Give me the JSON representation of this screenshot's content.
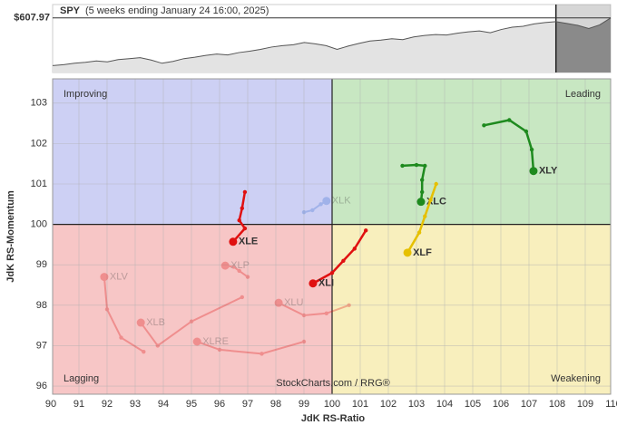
{
  "chart_data": [
    {
      "type": "area",
      "title": "SPY",
      "subtitle": "(5 weeks ending January 24 16:00, 2025)",
      "price": {
        "value": 607.97,
        "label": "$607.97"
      },
      "values": [
        505,
        507,
        510,
        512,
        515,
        513,
        518,
        520,
        522,
        517,
        510,
        514,
        520,
        523,
        527,
        530,
        528,
        533,
        536,
        540,
        545,
        548,
        550,
        555,
        552,
        548,
        540,
        547,
        553,
        558,
        560,
        563,
        561,
        567,
        570,
        572,
        571,
        575,
        578,
        580,
        576,
        583,
        588,
        590,
        595,
        598,
        600,
        596,
        592,
        585,
        593,
        607.97
      ],
      "ylim": [
        490,
        637
      ],
      "shade_last": 5,
      "color": "#e3e3e3",
      "shade_color": "#8a8a8a"
    },
    {
      "type": "rrg",
      "x_label": "JdK RS-Ratio",
      "y_label": "JdK RS-Momentum",
      "watermark": "StockCharts.com / RRG®",
      "xlim": [
        90,
        110
      ],
      "ylim": [
        95.8,
        103.6
      ],
      "xticks": [
        90,
        91,
        92,
        93,
        94,
        95,
        96,
        97,
        98,
        99,
        100,
        101,
        102,
        103,
        104,
        105,
        106,
        107,
        108,
        109,
        110
      ],
      "yticks": [
        96,
        97,
        98,
        99,
        100,
        101,
        102,
        103
      ],
      "center": [
        100,
        100
      ],
      "grid": true,
      "quadrants": [
        {
          "name": "Improving",
          "color": "#cdd0f4",
          "text_color": "#3b43c9"
        },
        {
          "name": "Leading",
          "color": "#c8e7c2",
          "text_color": "#2a8a2a"
        },
        {
          "name": "Lagging",
          "color": "#f7c6c6",
          "text_color": "#c62828"
        },
        {
          "name": "Weakening",
          "color": "#f8efbd",
          "text_color": "#d4a20c"
        }
      ],
      "series": [
        {
          "name": "XLY",
          "color": "#1e8a1e",
          "faded": false,
          "x": [
            105.4,
            106.3,
            106.9,
            107.1,
            107.16
          ],
          "y": [
            102.45,
            102.58,
            102.3,
            101.85,
            101.32
          ]
        },
        {
          "name": "XLC",
          "color": "#1e8a1e",
          "faded": false,
          "x": [
            102.5,
            103.0,
            103.3,
            103.2,
            103.2,
            103.16
          ],
          "y": [
            101.45,
            101.47,
            101.45,
            101.1,
            100.8,
            100.56
          ]
        },
        {
          "name": "XLF",
          "color": "#e6c000",
          "faded": false,
          "x": [
            103.7,
            103.5,
            103.3,
            103.1,
            102.68
          ],
          "y": [
            101.0,
            100.6,
            100.2,
            99.8,
            99.3
          ]
        },
        {
          "name": "XLI",
          "color": "#e01010",
          "faded": false,
          "x": [
            101.2,
            100.8,
            100.4,
            100.0,
            99.32
          ],
          "y": [
            99.85,
            99.4,
            99.1,
            98.8,
            98.54
          ]
        },
        {
          "name": "XLE",
          "color": "#e01010",
          "faded": false,
          "x": [
            96.9,
            96.8,
            96.7,
            96.9,
            96.48
          ],
          "y": [
            100.8,
            100.4,
            100.1,
            99.9,
            99.57
          ]
        },
        {
          "name": "XLK",
          "color": "#3b6fd0",
          "faded": true,
          "x": [
            99.0,
            99.3,
            99.6,
            99.8
          ],
          "y": [
            100.3,
            100.35,
            100.5,
            100.58
          ]
        },
        {
          "name": "XLP",
          "color": "#e01010",
          "faded": true,
          "x": [
            97.0,
            96.7,
            96.5,
            96.2
          ],
          "y": [
            98.7,
            98.85,
            98.95,
            98.98
          ]
        },
        {
          "name": "XLU",
          "color": "#e01010",
          "faded": true,
          "x": [
            100.6,
            99.8,
            99.0,
            98.1
          ],
          "y": [
            98.0,
            97.8,
            97.75,
            98.06
          ]
        },
        {
          "name": "XLV",
          "color": "#e01010",
          "faded": true,
          "x": [
            93.3,
            92.5,
            92.0,
            91.9
          ],
          "y": [
            96.85,
            97.2,
            97.9,
            98.7
          ]
        },
        {
          "name": "XLB",
          "color": "#e01010",
          "faded": true,
          "x": [
            96.8,
            95.0,
            93.8,
            93.2
          ],
          "y": [
            98.2,
            97.6,
            97.0,
            97.57
          ]
        },
        {
          "name": "XLRE",
          "color": "#e01010",
          "faded": true,
          "x": [
            99.0,
            97.5,
            96.0,
            95.2
          ],
          "y": [
            97.1,
            96.8,
            96.9,
            97.1
          ]
        }
      ]
    }
  ]
}
